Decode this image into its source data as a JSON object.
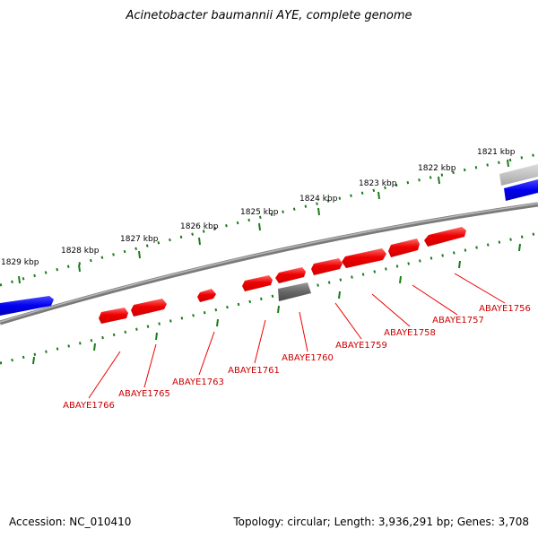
{
  "title": "Acinetobacter baumannii AYE, complete genome",
  "footer": {
    "accession": "Accession: NC_010410",
    "summary": "Topology: circular; Length: 3,936,291 bp; Genes: 3,708"
  },
  "kbp_labels": [
    "1821 kbp",
    "1822 kbp",
    "1823 kbp",
    "1824 kbp",
    "1825 kbp",
    "1826 kbp",
    "1827 kbp",
    "1828 kbp",
    "1829 kbp"
  ],
  "gene_labels": [
    "ABAYE1756",
    "ABAYE1757",
    "ABAYE1758",
    "ABAYE1759",
    "ABAYE1760",
    "ABAYE1761",
    "ABAYE1763",
    "ABAYE1765",
    "ABAYE1766"
  ],
  "colors": {
    "highlight_gene": "#ee0000",
    "other_gene": "#666666",
    "neighbor_gene": "#0000dd",
    "tick": "#1a7a1a",
    "backbone": "#888888",
    "gene_label": "#cc0000"
  }
}
